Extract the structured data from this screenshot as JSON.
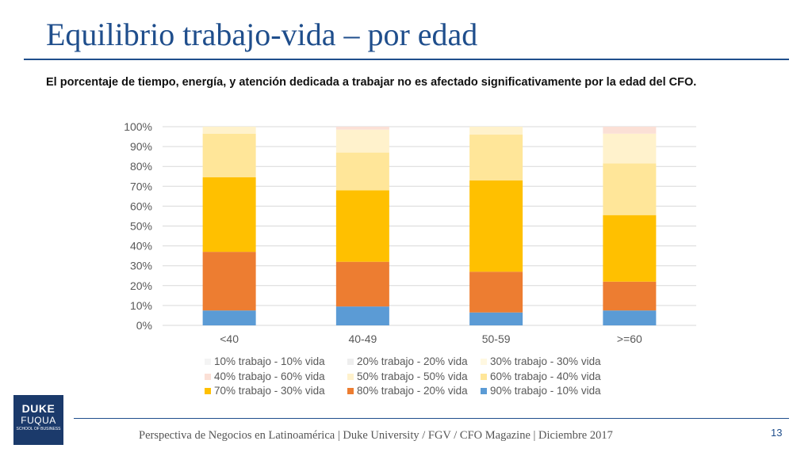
{
  "slide": {
    "title": "Equilibrio trabajo-vida – por edad",
    "subtitle": "El porcentaje de tiempo, energía, y atención dedicada a trabajar no es afectado significativamente por la edad del CFO.",
    "footer": "Perspectiva de Negocios en Latinoamérica | Duke University / FGV / CFO Magazine | Diciembre 2017",
    "page_number": "13",
    "logo": {
      "line1": "DUKE",
      "line2": "FUQUA",
      "line3": "SCHOOL OF BUSINESS"
    }
  },
  "chart_data": {
    "type": "bar",
    "stacked": true,
    "categories": [
      "<40",
      "40-49",
      "50-59",
      ">=60"
    ],
    "ylim": [
      0,
      100
    ],
    "yticks": [
      "0%",
      "10%",
      "20%",
      "30%",
      "40%",
      "50%",
      "60%",
      "70%",
      "80%",
      "90%",
      "100%"
    ],
    "grid": true,
    "legend_position": "bottom",
    "series": [
      {
        "name": "90% trabajo - 10% vida",
        "color": "#5b9bd5",
        "values": [
          7.5,
          9.5,
          6.5,
          7.5
        ]
      },
      {
        "name": "80% trabajo - 20% vida",
        "color": "#ed7d31",
        "values": [
          29.5,
          22.5,
          20.5,
          14.5
        ]
      },
      {
        "name": "70% trabajo - 30% vida",
        "color": "#ffc000",
        "values": [
          37.5,
          36,
          46,
          33.5
        ]
      },
      {
        "name": "60% trabajo - 40% vida",
        "color": "#ffe699",
        "values": [
          22,
          19,
          23,
          26
        ]
      },
      {
        "name": "50% trabajo - 50% vida",
        "color": "#fff2cc",
        "values": [
          3.5,
          11.5,
          4,
          15
        ]
      },
      {
        "name": "40% trabajo - 60% vida",
        "color": "#fbe0d6",
        "values": [
          0,
          1.5,
          0,
          3.5
        ]
      },
      {
        "name": "30% trabajo - 30% vida",
        "color": "#fff8e1",
        "values": [
          0,
          0,
          0,
          0
        ]
      },
      {
        "name": "20% trabajo - 20% vida",
        "color": "#eeeeee",
        "values": [
          0,
          0,
          0,
          0
        ]
      },
      {
        "name": "10% trabajo - 10% vida",
        "color": "#f4f4f4",
        "values": [
          0,
          0,
          0,
          0
        ]
      }
    ],
    "legend_order": [
      "10% trabajo - 10% vida",
      "20% trabajo - 20% vida",
      "30% trabajo - 30% vida",
      "40% trabajo - 60% vida",
      "50% trabajo - 50% vida",
      "60% trabajo - 40% vida",
      "70% trabajo - 30% vida",
      "80% trabajo - 20% vida",
      "90% trabajo - 10% vida"
    ]
  }
}
